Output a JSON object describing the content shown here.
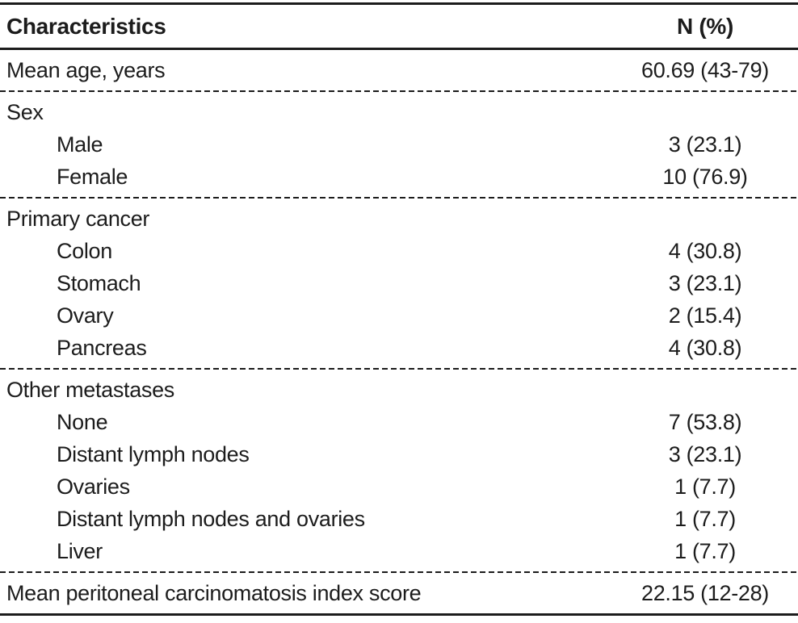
{
  "colors": {
    "ink": "#1c1c1c",
    "background": "#ffffff"
  },
  "table": {
    "header": {
      "label": "Characteristics",
      "value": "N (%)"
    },
    "sections": [
      {
        "rows": [
          {
            "label": "Mean age, years",
            "value": "60.69 (43-79)",
            "indent": false
          }
        ]
      },
      {
        "rows": [
          {
            "label": "Sex",
            "group": true
          },
          {
            "label": "Male",
            "value": "3 (23.1)",
            "indent": true
          },
          {
            "label": "Female",
            "value": "10 (76.9)",
            "indent": true
          }
        ]
      },
      {
        "rows": [
          {
            "label": "Primary cancer",
            "group": true
          },
          {
            "label": "Colon",
            "value": "4 (30.8)",
            "indent": true
          },
          {
            "label": "Stomach",
            "value": "3 (23.1)",
            "indent": true
          },
          {
            "label": "Ovary",
            "value": "2 (15.4)",
            "indent": true
          },
          {
            "label": "Pancreas",
            "value": "4 (30.8)",
            "indent": true
          }
        ]
      },
      {
        "rows": [
          {
            "label": "Other metastases",
            "group": true
          },
          {
            "label": "None",
            "value": "7 (53.8)",
            "indent": true
          },
          {
            "label": "Distant lymph nodes",
            "value": "3 (23.1)",
            "indent": true
          },
          {
            "label": "Ovaries",
            "value": "1 (7.7)",
            "indent": true
          },
          {
            "label": "Distant lymph nodes and ovaries",
            "value": "1 (7.7)",
            "indent": true
          },
          {
            "label": "Liver",
            "value": "1 (7.7)",
            "indent": true
          }
        ]
      },
      {
        "rows": [
          {
            "label": "Mean peritoneal carcinomatosis index score",
            "value": "22.15 (12-28)",
            "indent": false
          }
        ]
      }
    ]
  }
}
